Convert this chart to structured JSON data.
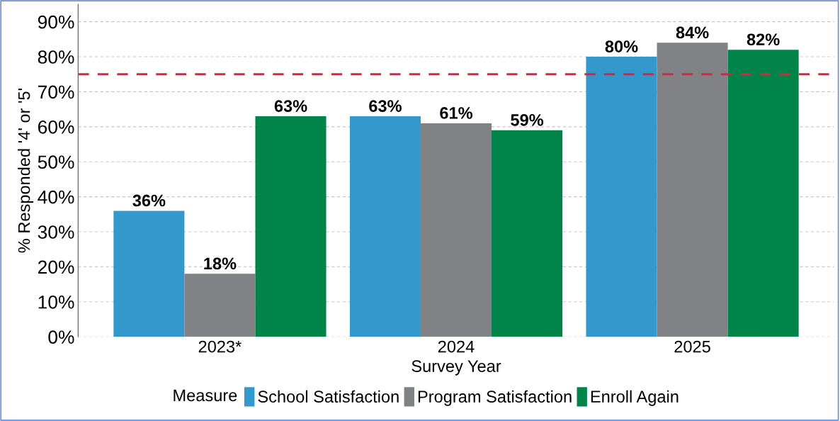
{
  "chart_data": {
    "type": "bar",
    "xlabel": "Survey Year",
    "ylabel": "% Responded '4' or '5'",
    "legend_title": "Measure",
    "categories": [
      "2023*",
      "2024",
      "2025"
    ],
    "series": [
      {
        "name": "School Satisfaction",
        "color": "#3399cc",
        "values": [
          36,
          63,
          80
        ],
        "value_labels": [
          "36%",
          "63%",
          "80%"
        ]
      },
      {
        "name": "Program Satisfaction",
        "color": "#808285",
        "values": [
          18,
          61,
          84
        ],
        "value_labels": [
          "18%",
          "61%",
          "84%"
        ]
      },
      {
        "name": "Enroll Again",
        "color": "#00844a",
        "values": [
          63,
          59,
          82
        ],
        "value_labels": [
          "63%",
          "59%",
          "82%"
        ]
      }
    ],
    "ylim": [
      0,
      95
    ],
    "yticks": [
      {
        "value": 0,
        "label": "0%"
      },
      {
        "value": 10,
        "label": "10%"
      },
      {
        "value": 20,
        "label": "20%"
      },
      {
        "value": 30,
        "label": "30%"
      },
      {
        "value": 40,
        "label": "40%"
      },
      {
        "value": 50,
        "label": "50%"
      },
      {
        "value": 60,
        "label": "60%"
      },
      {
        "value": 70,
        "label": "70%"
      },
      {
        "value": 80,
        "label": "80%"
      },
      {
        "value": 90,
        "label": "90%"
      }
    ],
    "ref_lines": [
      {
        "axis": "y",
        "value": 75,
        "color": "#d7263d",
        "line_style": "dashed"
      }
    ],
    "grid": "y",
    "legend": "bottom"
  }
}
